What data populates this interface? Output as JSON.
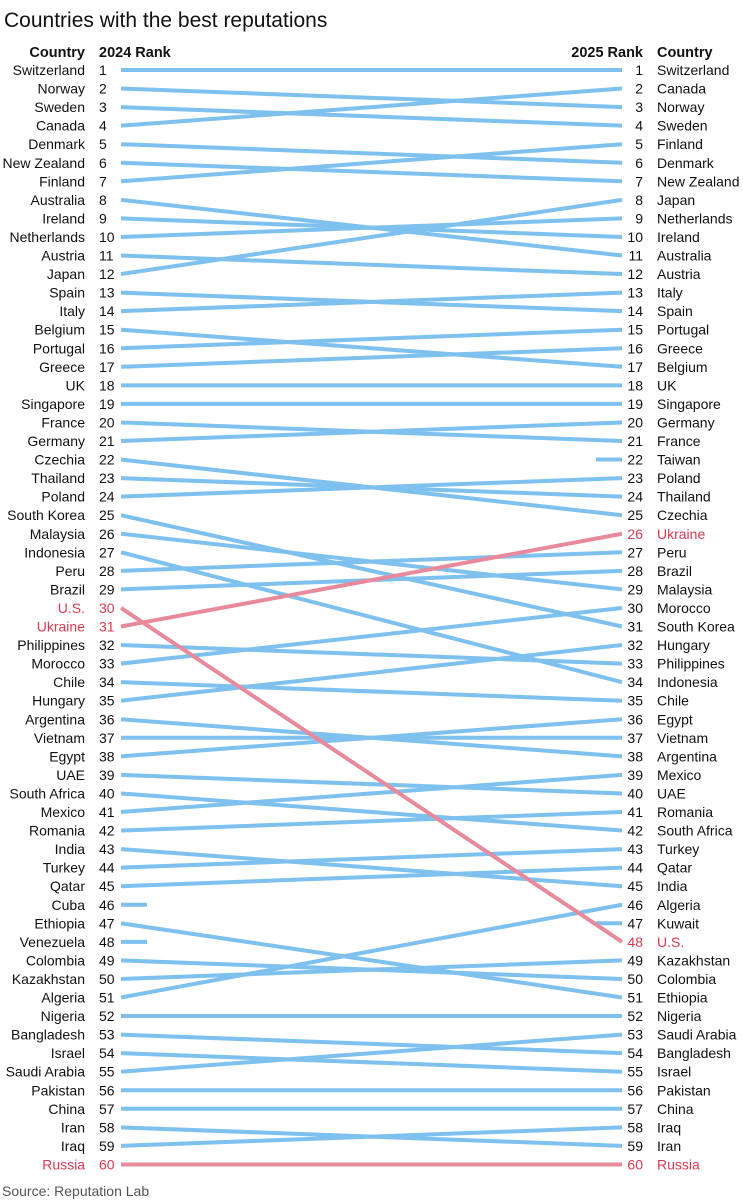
{
  "chart_data": {
    "type": "slope",
    "title": "Countries with the best reputations",
    "source": "Source: Reputation Lab",
    "left_headers": {
      "country": "Country",
      "rank": "2024 Rank"
    },
    "right_headers": {
      "rank": "2025 Rank",
      "country": "Country"
    },
    "highlight": [
      "Ukraine",
      "U.S.",
      "Russia"
    ],
    "colors": {
      "line": "#7ec0ee",
      "highlight_line": "#e88a9b",
      "highlight_text": "#d93a52",
      "text": "#111111"
    },
    "rank_2024": [
      "Switzerland",
      "Norway",
      "Sweden",
      "Canada",
      "Denmark",
      "New Zealand",
      "Finland",
      "Australia",
      "Ireland",
      "Netherlands",
      "Austria",
      "Japan",
      "Spain",
      "Italy",
      "Belgium",
      "Portugal",
      "Greece",
      "UK",
      "Singapore",
      "France",
      "Germany",
      "Czechia",
      "Thailand",
      "Poland",
      "South Korea",
      "Malaysia",
      "Indonesia",
      "Peru",
      "Brazil",
      "U.S.",
      "Ukraine",
      "Philippines",
      "Morocco",
      "Chile",
      "Hungary",
      "Argentina",
      "Vietnam",
      "Egypt",
      "UAE",
      "South Africa",
      "Mexico",
      "Romania",
      "India",
      "Turkey",
      "Qatar",
      "Cuba",
      "Ethiopia",
      "Venezuela",
      "Colombia",
      "Kazakhstan",
      "Algeria",
      "Nigeria",
      "Bangladesh",
      "Israel",
      "Saudi Arabia",
      "Pakistan",
      "China",
      "Iran",
      "Iraq",
      "Russia"
    ],
    "rank_2025": [
      "Switzerland",
      "Canada",
      "Norway",
      "Sweden",
      "Finland",
      "Denmark",
      "New Zealand",
      "Japan",
      "Netherlands",
      "Ireland",
      "Australia",
      "Austria",
      "Italy",
      "Spain",
      "Portugal",
      "Greece",
      "Belgium",
      "UK",
      "Singapore",
      "Germany",
      "France",
      "Taiwan",
      "Poland",
      "Thailand",
      "Czechia",
      "Ukraine",
      "Peru",
      "Brazil",
      "Malaysia",
      "Morocco",
      "South Korea",
      "Hungary",
      "Philippines",
      "Indonesia",
      "Chile",
      "Egypt",
      "Vietnam",
      "Argentina",
      "Mexico",
      "UAE",
      "Romania",
      "South Africa",
      "Turkey",
      "Qatar",
      "India",
      "Algeria",
      "Kuwait",
      "U.S.",
      "Kazakhstan",
      "Colombia",
      "Ethiopia",
      "Nigeria",
      "Saudi Arabia",
      "Bangladesh",
      "Israel",
      "Pakistan",
      "China",
      "Iraq",
      "Iran",
      "Russia"
    ]
  }
}
